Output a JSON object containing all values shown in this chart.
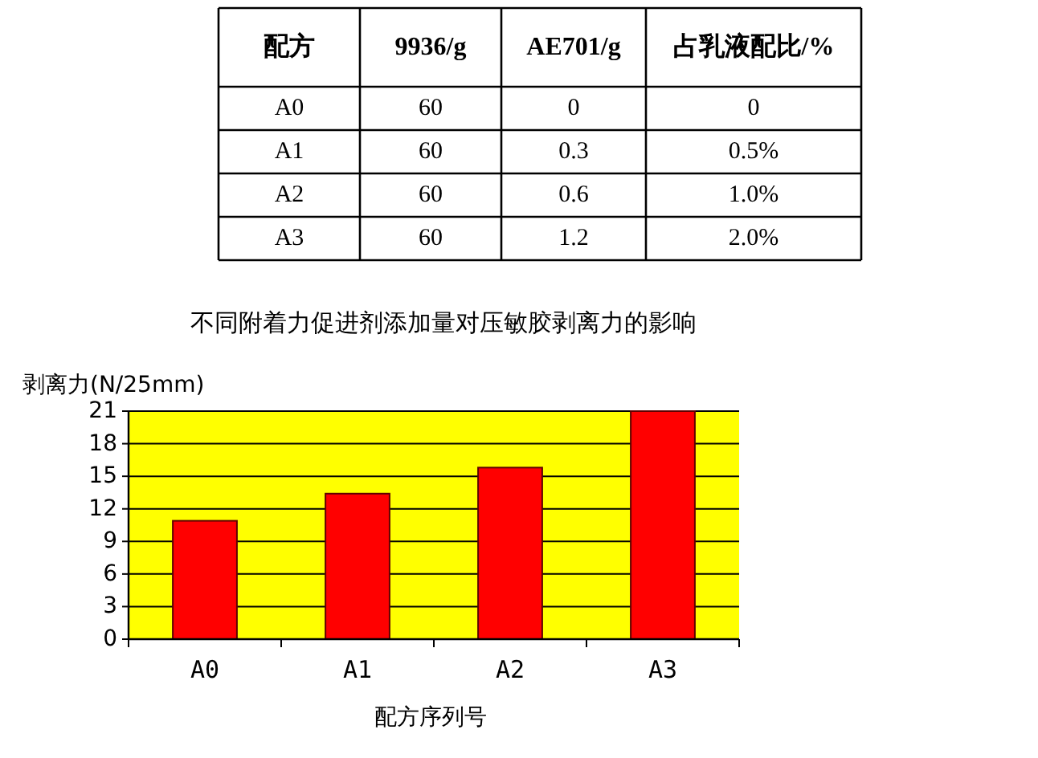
{
  "chart_data": [
    {
      "type": "other",
      "ylabel": "配方",
      "categories": [
        "9936/g",
        "AE701/g",
        "占乳液配比/%"
      ],
      "y_categories": [
        "A0",
        "A1",
        "A2",
        "A3"
      ],
      "cell_labels": [
        [
          "60",
          "0",
          "0"
        ],
        [
          "60",
          "0.3",
          "0.5%"
        ],
        [
          "60",
          "0.6",
          "1.0%"
        ],
        [
          "60",
          "1.2",
          "2.0%"
        ]
      ]
    },
    {
      "type": "bar",
      "title": "不同附着力促进剂添加量对压敏胶剥离力的影响",
      "xlabel": "配方序列号",
      "ylabel": "剥离力(N/25mm)",
      "categories": [
        "A0",
        "A1",
        "A2",
        "A3"
      ],
      "values": [
        10.9,
        13.4,
        15.8,
        21
      ],
      "color": "#ff0000",
      "ylim": [
        0,
        21
      ],
      "yticks": [
        0,
        3,
        6,
        9,
        12,
        15,
        18,
        21
      ],
      "grid": "y"
    }
  ]
}
